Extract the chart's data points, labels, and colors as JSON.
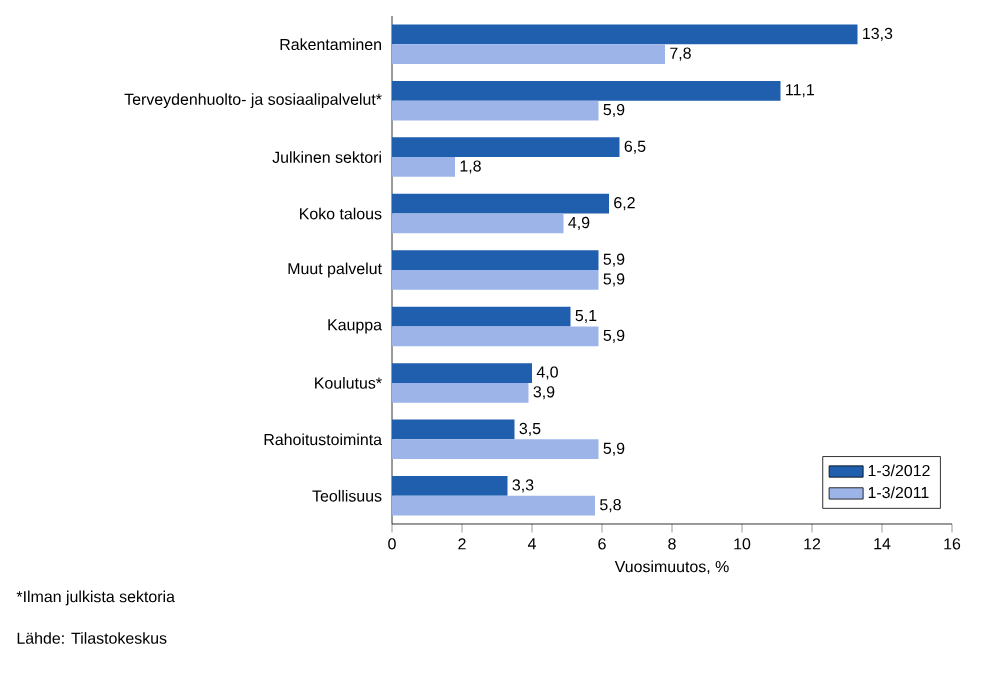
{
  "chart_data": {
    "type": "bar",
    "orientation": "horizontal",
    "categories": [
      "Rakentaminen",
      "Terveydenhuolto- ja sosiaalipalvelut*",
      "Julkinen sektori",
      "Koko talous",
      "Muut palvelut",
      "Kauppa",
      "Koulutus*",
      "Rahoitustoiminta",
      "Teollisuus"
    ],
    "series": [
      {
        "name": "1-3/2012",
        "color": "#1f5fae",
        "values": [
          13.3,
          11.1,
          6.5,
          6.2,
          5.9,
          5.1,
          4.0,
          3.5,
          3.3
        ],
        "value_labels": [
          "13,3",
          "11,1",
          "6,5",
          "6,2",
          "5,9",
          "5,1",
          "4,0",
          "3,5",
          "3,3"
        ]
      },
      {
        "name": "1-3/2011",
        "color": "#9db4e8",
        "values": [
          7.8,
          5.9,
          1.8,
          4.9,
          5.9,
          5.9,
          3.9,
          5.9,
          5.8
        ],
        "value_labels": [
          "7,8",
          "5,9",
          "1,8",
          "4,9",
          "5,9",
          "5,9",
          "3,9",
          "5,9",
          "5,8"
        ]
      }
    ],
    "xlabel": "Vuosimuutos, %",
    "xlim": [
      0,
      16
    ],
    "xticks": [
      0,
      2,
      4,
      6,
      8,
      10,
      12,
      14,
      16
    ],
    "legend": "bottom right",
    "annotations": [
      "*Ilman julkista sektoria",
      "Lähde: Tilastokeskus"
    ]
  }
}
